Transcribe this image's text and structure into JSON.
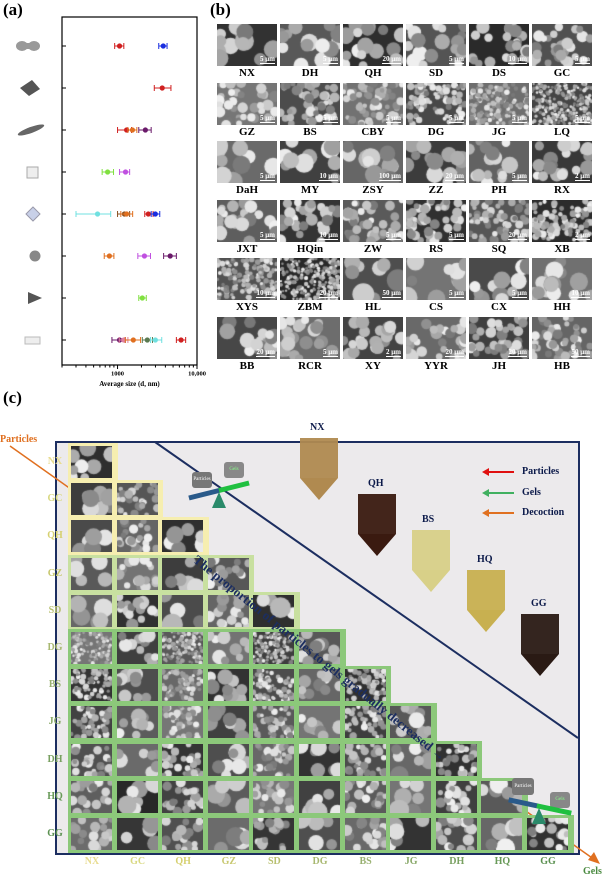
{
  "panel_a": {
    "label": "(a)"
  },
  "chart_data": {
    "type": "scatter",
    "xlabel": "Average size (d, nm)",
    "xscale": "log",
    "xlim": [
      200,
      10000
    ],
    "xticks": [
      "1000",
      "10,000"
    ],
    "rows": [
      {
        "shape": "dumbbell",
        "points": [
          {
            "x": 1060,
            "lo": 920,
            "hi": 1200,
            "color": "#d02020"
          },
          {
            "x": 3760,
            "lo": 3300,
            "hi": 4200,
            "color": "#1a2ee0"
          }
        ]
      },
      {
        "shape": "pyramid",
        "points": [
          {
            "x": 3650,
            "lo": 2900,
            "hi": 4700,
            "color": "#d02020"
          }
        ]
      },
      {
        "shape": "spindle",
        "points": [
          {
            "x": 1300,
            "lo": 1000,
            "hi": 1500,
            "color": "#d02020"
          },
          {
            "x": 1540,
            "lo": 1350,
            "hi": 1750,
            "color": "#e07020"
          },
          {
            "x": 2240,
            "lo": 1850,
            "hi": 2650,
            "color": "#6a1a6a"
          }
        ]
      },
      {
        "shape": "cube",
        "points": [
          {
            "x": 750,
            "lo": 640,
            "hi": 890,
            "color": "#80e040"
          },
          {
            "x": 1260,
            "lo": 1060,
            "hi": 1420,
            "color": "#c050e0"
          }
        ]
      },
      {
        "shape": "octahedron",
        "points": [
          {
            "x": 560,
            "lo": 300,
            "hi": 820,
            "color": "#70e0e0"
          },
          {
            "x": 1220,
            "lo": 1000,
            "hi": 1420,
            "color": "#8a5020"
          },
          {
            "x": 1300,
            "lo": 1100,
            "hi": 1550,
            "color": "#e07020"
          },
          {
            "x": 2440,
            "lo": 2200,
            "hi": 2800,
            "color": "#d02020"
          },
          {
            "x": 2990,
            "lo": 2650,
            "hi": 3400,
            "color": "#1a2ee0"
          }
        ]
      },
      {
        "shape": "sphere",
        "points": [
          {
            "x": 790,
            "lo": 680,
            "hi": 900,
            "color": "#e07020"
          },
          {
            "x": 2180,
            "lo": 1800,
            "hi": 2600,
            "color": "#c050e0"
          },
          {
            "x": 4600,
            "lo": 3800,
            "hi": 5500,
            "color": "#6a1a6a"
          }
        ]
      },
      {
        "shape": "cone",
        "points": [
          {
            "x": 2050,
            "lo": 1850,
            "hi": 2300,
            "color": "#80e040"
          }
        ]
      },
      {
        "shape": "plate",
        "points": [
          {
            "x": 1060,
            "lo": 850,
            "hi": 1250,
            "color": "#6a1a6a"
          },
          {
            "x": 1200,
            "lo": 1050,
            "hi": 1350,
            "color": "#e080a0"
          },
          {
            "x": 1580,
            "lo": 1250,
            "hi": 1950,
            "color": "#e07020"
          },
          {
            "x": 2370,
            "lo": 2050,
            "hi": 2750,
            "color": "#5a7a50"
          },
          {
            "x": 2990,
            "lo": 2600,
            "hi": 3600,
            "color": "#70e0e0"
          },
          {
            "x": 6300,
            "lo": 5500,
            "hi": 7200,
            "color": "#d02020"
          }
        ]
      }
    ]
  },
  "panel_b": {
    "label": "(b)",
    "images": [
      {
        "name": "NX",
        "scale": "5 μm"
      },
      {
        "name": "DH",
        "scale": "5 μm"
      },
      {
        "name": "QH",
        "scale": "20 μm"
      },
      {
        "name": "SD",
        "scale": "5 μm"
      },
      {
        "name": "DS",
        "scale": "10 μm"
      },
      {
        "name": "GC",
        "scale": "5 μm"
      },
      {
        "name": "GZ",
        "scale": "5 μm"
      },
      {
        "name": "BS",
        "scale": "5 μm"
      },
      {
        "name": "CBY",
        "scale": "5 μm"
      },
      {
        "name": "DG",
        "scale": "5 μm"
      },
      {
        "name": "JG",
        "scale": "5 μm"
      },
      {
        "name": "LQ",
        "scale": "5 μm"
      },
      {
        "name": "DaH",
        "scale": "5 μm"
      },
      {
        "name": "MY",
        "scale": "10 μm"
      },
      {
        "name": "ZSY",
        "scale": "100 μm"
      },
      {
        "name": "ZZ",
        "scale": "20 μm"
      },
      {
        "name": "PH",
        "scale": "5 μm"
      },
      {
        "name": "RX",
        "scale": "2 μm"
      },
      {
        "name": "JXT",
        "scale": "5 μm"
      },
      {
        "name": "HQin",
        "scale": "10 μm"
      },
      {
        "name": "ZW",
        "scale": "5 μm"
      },
      {
        "name": "RS",
        "scale": "5 μm"
      },
      {
        "name": "SQ",
        "scale": "20 μm"
      },
      {
        "name": "XB",
        "scale": "2 μm"
      },
      {
        "name": "XYS",
        "scale": "10 μm"
      },
      {
        "name": "ZBM",
        "scale": "20 μm"
      },
      {
        "name": "HL",
        "scale": "50 μm"
      },
      {
        "name": "CS",
        "scale": "5 μm"
      },
      {
        "name": "CX",
        "scale": "5 μm"
      },
      {
        "name": "HH",
        "scale": "10 μm"
      },
      {
        "name": "BB",
        "scale": "20 μm"
      },
      {
        "name": "RCR",
        "scale": "5 μm"
      },
      {
        "name": "XY",
        "scale": "2 μm"
      },
      {
        "name": "YYR",
        "scale": "20 μm"
      },
      {
        "name": "JH",
        "scale": "20 μm"
      },
      {
        "name": "HB",
        "scale": "50 μm"
      }
    ]
  },
  "panel_c": {
    "label": "(c)",
    "particles_axis": "Particles",
    "gels_axis": "Gels",
    "rows": [
      "NX",
      "GC",
      "QH",
      "GZ",
      "SD",
      "DG",
      "BS",
      "JG",
      "DH",
      "HQ",
      "GG"
    ],
    "label_colors": [
      "#e8dc90",
      "#d8d880",
      "#d6d070",
      "#c8c870",
      "#b8c070",
      "#a8b870",
      "#98b070",
      "#88a868",
      "#78a060",
      "#689a58",
      "#5a9050"
    ],
    "diagonal_text": "The proportion of particles to gels gradually decreased →",
    "balance_labels": {
      "left": "Particles",
      "right": "Gels"
    },
    "tubes": [
      "NX",
      "QH",
      "BS",
      "HQ",
      "GG"
    ],
    "legend": [
      {
        "label": "Particles",
        "color": "#e01010"
      },
      {
        "label": "Gels",
        "color": "#40b060"
      },
      {
        "label": "Decoction",
        "color": "#e07020"
      }
    ]
  }
}
